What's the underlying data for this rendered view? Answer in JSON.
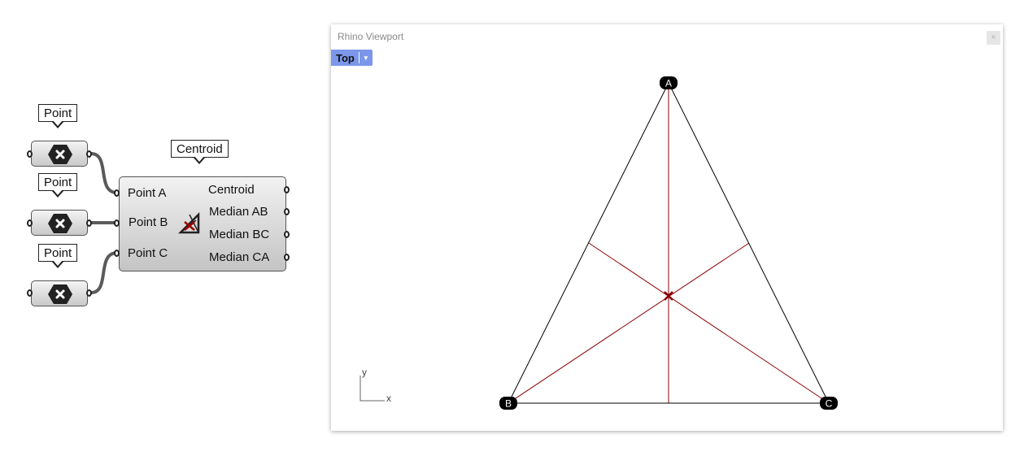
{
  "grasshopper": {
    "point_params": [
      {
        "bubble": "Point"
      },
      {
        "bubble": "Point"
      },
      {
        "bubble": "Point"
      }
    ],
    "component": {
      "bubble": "Centroid",
      "inputs": [
        "Point A",
        "Point B",
        "Point C"
      ],
      "outputs": [
        "Centroid",
        "Median AB",
        "Median BC",
        "Median CA"
      ]
    }
  },
  "viewport": {
    "title": "Rhino Viewport",
    "view_name": "Top",
    "close_symbol": "×",
    "points": [
      "A",
      "B",
      "C"
    ],
    "axes": {
      "x": "x",
      "y": "y"
    },
    "colors": {
      "triangle": "#000000",
      "medians": "#8b0000"
    }
  }
}
